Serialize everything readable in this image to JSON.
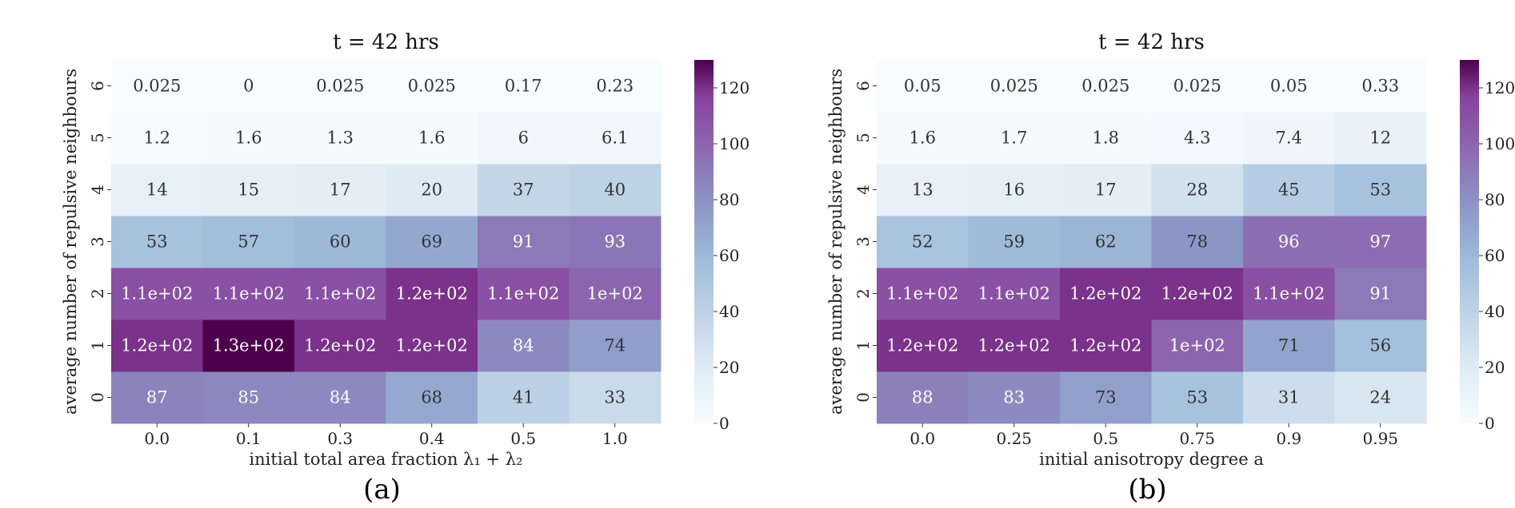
{
  "chart_data": [
    {
      "type": "heatmap",
      "title": "t = 42 hrs",
      "xlabel": "initial total area fraction λ₁ + λ₂",
      "ylabel": "average number of repulsive neighbours",
      "panel_label": "(a)",
      "x_categories": [
        "0.0",
        "0.1",
        "0.3",
        "0.4",
        "0.5",
        "1.0"
      ],
      "y_categories": [
        "0",
        "1",
        "2",
        "3",
        "4",
        "5",
        "6"
      ],
      "values": [
        [
          87,
          85,
          84,
          68,
          41,
          33
        ],
        [
          120,
          130,
          120,
          120,
          84,
          74
        ],
        [
          110,
          110,
          110,
          120,
          110,
          100
        ],
        [
          53,
          57,
          60,
          69,
          91,
          93
        ],
        [
          14,
          15,
          17,
          20,
          37,
          40
        ],
        [
          1.2,
          1.6,
          1.3,
          1.6,
          6,
          6.1
        ],
        [
          0.025,
          0,
          0.025,
          0.025,
          0.17,
          0.23
        ]
      ],
      "labels": [
        [
          "87",
          "85",
          "84",
          "68",
          "41",
          "33"
        ],
        [
          "1.2e+02",
          "1.3e+02",
          "1.2e+02",
          "1.2e+02",
          "84",
          "74"
        ],
        [
          "1.1e+02",
          "1.1e+02",
          "1.1e+02",
          "1.2e+02",
          "1.1e+02",
          "1e+02"
        ],
        [
          "53",
          "57",
          "60",
          "69",
          "91",
          "93"
        ],
        [
          "14",
          "15",
          "17",
          "20",
          "37",
          "40"
        ],
        [
          "1.2",
          "1.6",
          "1.3",
          "1.6",
          "6",
          "6.1"
        ],
        [
          "0.025",
          "0",
          "0.025",
          "0.025",
          "0.17",
          "0.23"
        ]
      ],
      "colorbar": {
        "range": [
          0,
          130
        ],
        "ticks": [
          "0",
          "20",
          "40",
          "60",
          "80",
          "100",
          "120"
        ],
        "colormap": "BuPu"
      }
    },
    {
      "type": "heatmap",
      "title": "t = 42 hrs",
      "xlabel": "initial anisotropy degree a",
      "ylabel": "average number of repulsive neighbours",
      "panel_label": "(b)",
      "x_categories": [
        "0.0",
        "0.25",
        "0.5",
        "0.75",
        "0.9",
        "0.95"
      ],
      "y_categories": [
        "0",
        "1",
        "2",
        "3",
        "4",
        "5",
        "6"
      ],
      "values": [
        [
          88,
          83,
          73,
          53,
          31,
          24
        ],
        [
          120,
          120,
          120,
          100,
          71,
          56
        ],
        [
          110,
          110,
          120,
          120,
          110,
          91
        ],
        [
          52,
          59,
          62,
          78,
          96,
          97
        ],
        [
          13,
          16,
          17,
          28,
          45,
          53
        ],
        [
          1.6,
          1.7,
          1.8,
          4.3,
          7.4,
          12
        ],
        [
          0.05,
          0.025,
          0.025,
          0.025,
          0.05,
          0.33
        ]
      ],
      "labels": [
        [
          "88",
          "83",
          "73",
          "53",
          "31",
          "24"
        ],
        [
          "1.2e+02",
          "1.2e+02",
          "1.2e+02",
          "1e+02",
          "71",
          "56"
        ],
        [
          "1.1e+02",
          "1.1e+02",
          "1.2e+02",
          "1.2e+02",
          "1.1e+02",
          "91"
        ],
        [
          "52",
          "59",
          "62",
          "78",
          "96",
          "97"
        ],
        [
          "13",
          "16",
          "17",
          "28",
          "45",
          "53"
        ],
        [
          "1.6",
          "1.7",
          "1.8",
          "4.3",
          "7.4",
          "12"
        ],
        [
          "0.05",
          "0.025",
          "0.025",
          "0.025",
          "0.05",
          "0.33"
        ]
      ],
      "colorbar": {
        "range": [
          0,
          130
        ],
        "ticks": [
          "0",
          "20",
          "40",
          "60",
          "80",
          "100",
          "120"
        ],
        "colormap": "BuPu"
      }
    }
  ]
}
